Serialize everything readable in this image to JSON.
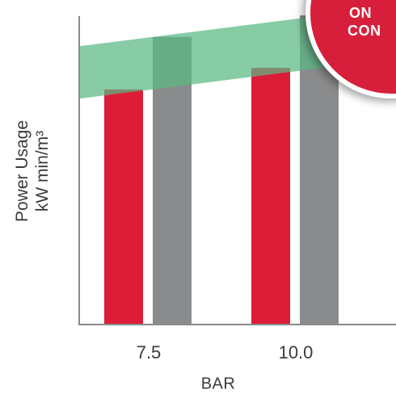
{
  "chart_data": {
    "type": "bar",
    "title": "",
    "xlabel": "BAR",
    "ylabel_lines": [
      "Power Usage",
      "kW min/m³"
    ],
    "categories": [
      "7.5",
      "10.0"
    ],
    "series": [
      {
        "values": [
          0.76,
          0.83
        ],
        "color": "#dd1c37"
      },
      {
        "values": [
          0.93,
          1.0
        ],
        "color": "#8a8b8c"
      }
    ],
    "band": {
      "color": "#5ab882",
      "lower": [
        0.73,
        0.86
      ],
      "upper": [
        0.9,
        1.03
      ]
    },
    "ylim": [
      0,
      1.05
    ],
    "grid": false,
    "legend": "none"
  },
  "badge": {
    "color": "#d71f3c",
    "line1": "ON",
    "line2": "CON"
  }
}
